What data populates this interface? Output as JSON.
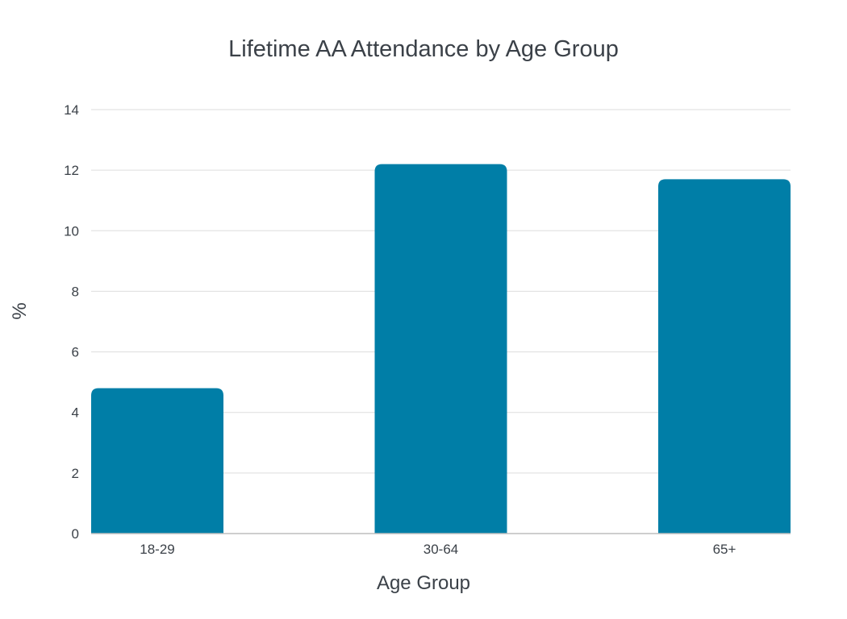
{
  "chart_data": {
    "type": "bar",
    "title": "Lifetime AA Attendance by Age Group",
    "xlabel": "Age Group",
    "ylabel": "%",
    "categories": [
      "18-29",
      "30-64",
      "65+"
    ],
    "values": [
      4.8,
      12.2,
      11.7
    ],
    "ylim": [
      0,
      14
    ],
    "yticks": [
      "0",
      "2",
      "4",
      "6",
      "8",
      "10",
      "12",
      "14"
    ],
    "grid": true,
    "legend": "none",
    "colors": {
      "bar": "#007ea7",
      "text": "#3b4148",
      "grid": "#dddddd",
      "baseline": "#bdbdbd"
    }
  }
}
